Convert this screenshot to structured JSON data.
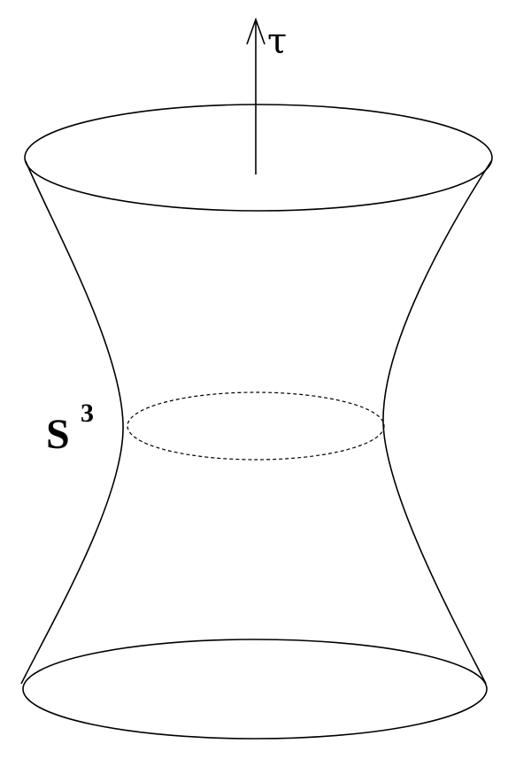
{
  "diagram": {
    "time_axis_label": "τ",
    "sphere_label_base": "S",
    "sphere_label_exponent": "3",
    "colors": {
      "stroke": "#000000",
      "background": "#ffffff"
    }
  }
}
